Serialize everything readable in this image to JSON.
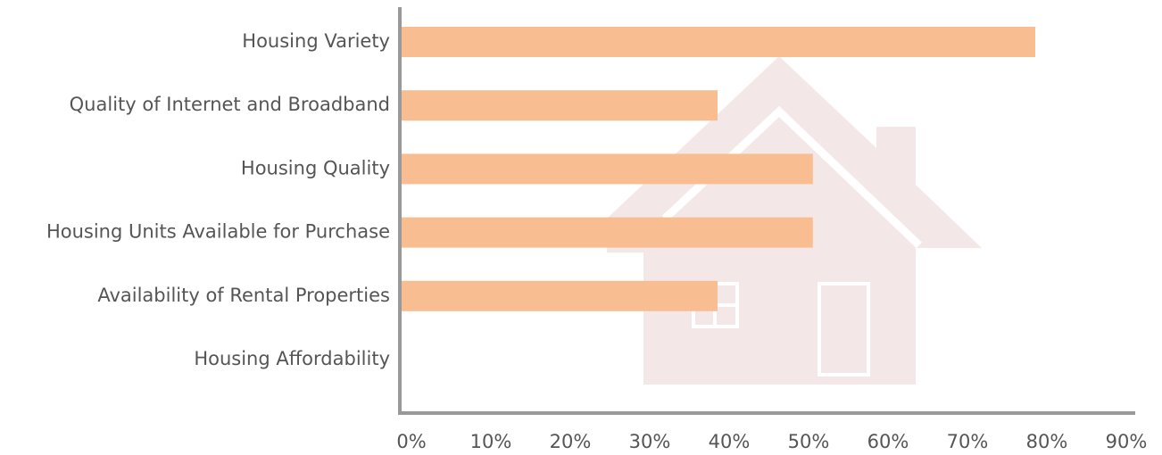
{
  "chart_data": {
    "type": "barh",
    "categories": [
      "Housing Variety",
      "Quality of Internet and Broadband",
      "Housing Quality",
      "Housing Units Available for Purchase",
      "Availability of Rental Properties",
      "Housing Affordability"
    ],
    "values": [
      80,
      40,
      52,
      52,
      40,
      0
    ],
    "color": "#f9bd92",
    "xlim": [
      0,
      90
    ],
    "xticks": [
      {
        "value": 0,
        "label": "0%"
      },
      {
        "value": 10,
        "label": "10%"
      },
      {
        "value": 20,
        "label": "20%"
      },
      {
        "value": 30,
        "label": "30%"
      },
      {
        "value": 40,
        "label": "40%"
      },
      {
        "value": 50,
        "label": "50%"
      },
      {
        "value": 60,
        "label": "60%"
      },
      {
        "value": 70,
        "label": "70%"
      },
      {
        "value": 80,
        "label": "80%"
      },
      {
        "value": 90,
        "label": "90%"
      }
    ],
    "grid": false
  }
}
